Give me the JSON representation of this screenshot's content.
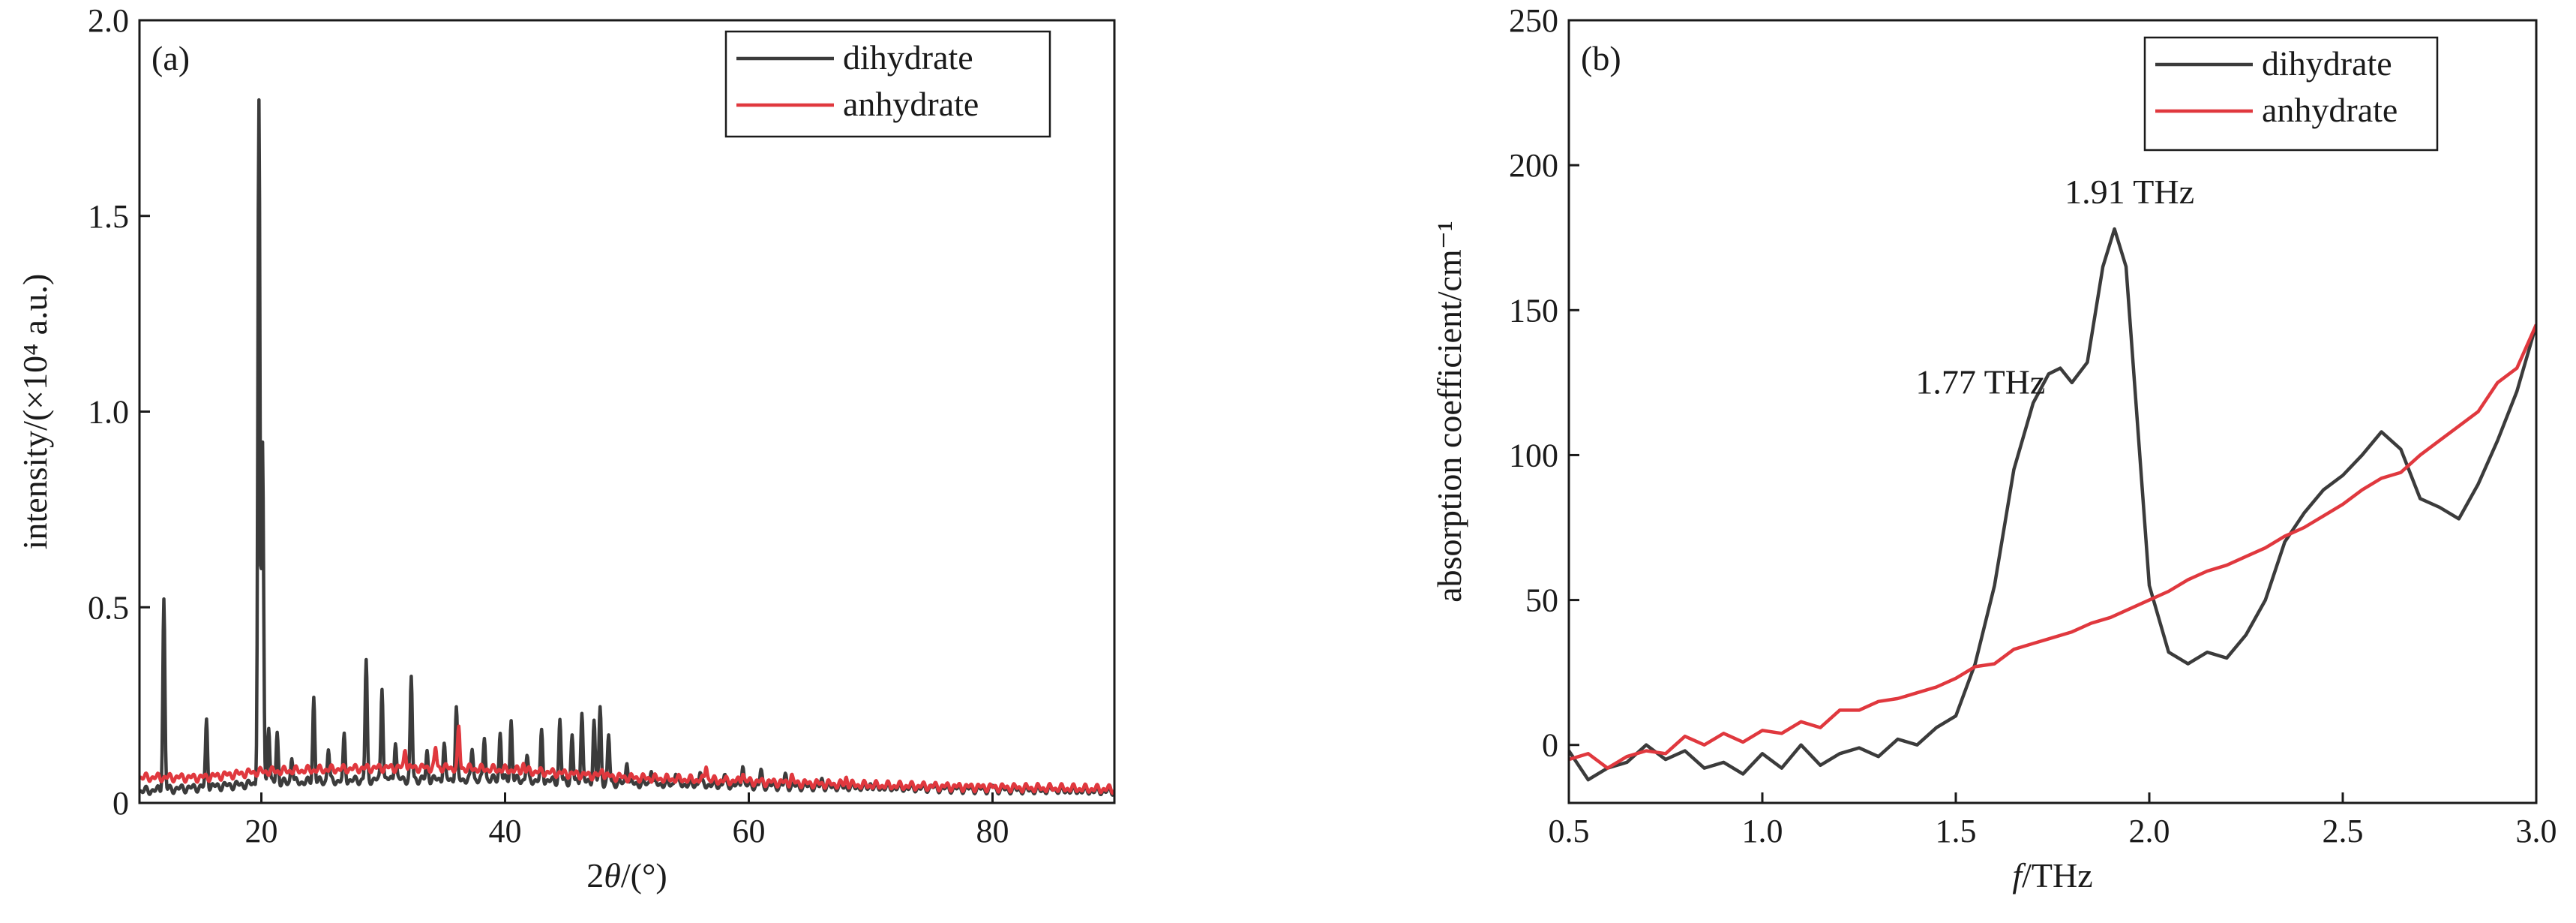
{
  "colors": {
    "dihydrate": "#3b3b3b",
    "anhydrate": "#e0383e",
    "axis": "#1a1a1a"
  },
  "chart_data": [
    {
      "type": "line",
      "panel_label": "(a)",
      "xlabel_prefix": "2",
      "xlabel_theta": "θ",
      "xlabel_suffix": "/(°)",
      "ylabel": "intensity/(×10⁴ a.u.)",
      "xlim": [
        10,
        90
      ],
      "ylim": [
        0,
        2.0
      ],
      "xticks": [
        20,
        40,
        60,
        80
      ],
      "xtick_labels": [
        "20",
        "40",
        "60",
        "80"
      ],
      "yticks": [
        0,
        0.5,
        1.0,
        1.5,
        2.0
      ],
      "ytick_labels": [
        "0",
        "0.5",
        "1.0",
        "1.5",
        "2.0"
      ],
      "grid": false,
      "legend_position": "top-right",
      "series": [
        {
          "name": "dihydrate",
          "color_key": "dihydrate",
          "baseline": [
            [
              10,
              0.03
            ],
            [
              20,
              0.05
            ],
            [
              30,
              0.06
            ],
            [
              40,
              0.06
            ],
            [
              50,
              0.05
            ],
            [
              60,
              0.045
            ],
            [
              70,
              0.04
            ],
            [
              80,
              0.035
            ],
            [
              90,
              0.03
            ]
          ],
          "peaks": [
            [
              12.0,
              0.52
            ],
            [
              15.5,
              0.21
            ],
            [
              19.8,
              1.79
            ],
            [
              20.1,
              0.92
            ],
            [
              20.6,
              0.2
            ],
            [
              21.3,
              0.18
            ],
            [
              22.5,
              0.12
            ],
            [
              24.3,
              0.27
            ],
            [
              25.5,
              0.14
            ],
            [
              26.8,
              0.17
            ],
            [
              28.6,
              0.36
            ],
            [
              29.9,
              0.3
            ],
            [
              31.0,
              0.16
            ],
            [
              32.3,
              0.32
            ],
            [
              33.6,
              0.13
            ],
            [
              35.0,
              0.15
            ],
            [
              36.0,
              0.24
            ],
            [
              37.3,
              0.14
            ],
            [
              38.3,
              0.17
            ],
            [
              39.6,
              0.18
            ],
            [
              40.5,
              0.21
            ],
            [
              41.8,
              0.12
            ],
            [
              43.0,
              0.18
            ],
            [
              44.5,
              0.21
            ],
            [
              45.5,
              0.17
            ],
            [
              46.3,
              0.23
            ],
            [
              47.3,
              0.21
            ],
            [
              47.8,
              0.24
            ],
            [
              48.5,
              0.17
            ],
            [
              50.0,
              0.11
            ],
            [
              52.0,
              0.09
            ],
            [
              54.0,
              0.08
            ],
            [
              56.0,
              0.08
            ],
            [
              58.0,
              0.07
            ],
            [
              59.5,
              0.1
            ],
            [
              61.0,
              0.08
            ],
            [
              63.0,
              0.07
            ],
            [
              66.0,
              0.06
            ],
            [
              70.0,
              0.05
            ],
            [
              75.0,
              0.045
            ],
            [
              80.0,
              0.045
            ],
            [
              85.0,
              0.04
            ]
          ]
        },
        {
          "name": "anhydrate",
          "color_key": "anhydrate",
          "baseline": [
            [
              10,
              0.065
            ],
            [
              15,
              0.065
            ],
            [
              20,
              0.08
            ],
            [
              25,
              0.085
            ],
            [
              30,
              0.09
            ],
            [
              35,
              0.09
            ],
            [
              40,
              0.085
            ],
            [
              50,
              0.065
            ],
            [
              60,
              0.055
            ],
            [
              70,
              0.045
            ],
            [
              80,
              0.04
            ],
            [
              90,
              0.035
            ]
          ],
          "peaks": [
            [
              31.8,
              0.14
            ],
            [
              34.3,
              0.14
            ],
            [
              36.2,
              0.19
            ],
            [
              41.5,
              0.1
            ],
            [
              48.0,
              0.09
            ],
            [
              56.5,
              0.1
            ],
            [
              59.5,
              0.08
            ],
            [
              63.5,
              0.07
            ],
            [
              68.0,
              0.065
            ]
          ]
        }
      ]
    },
    {
      "type": "line",
      "panel_label": "(b)",
      "xlabel_italic": "f",
      "xlabel_suffix": "/THz",
      "ylabel": "absorption coefficient/cm⁻¹",
      "xlim": [
        0.5,
        3.0
      ],
      "ylim": [
        -20,
        250
      ],
      "xticks": [
        0.5,
        1.0,
        1.5,
        2.0,
        2.5,
        3.0
      ],
      "xtick_labels": [
        "0.5",
        "1.0",
        "1.5",
        "2.0",
        "2.5",
        "3.0"
      ],
      "yticks": [
        0,
        50,
        100,
        150,
        200,
        250
      ],
      "ytick_labels": [
        "0",
        "50",
        "100",
        "150",
        "200",
        "250"
      ],
      "grid": false,
      "legend_position": "top-right",
      "annotations": [
        {
          "text": "1.77 THz",
          "x": 1.77,
          "y": 130
        },
        {
          "text": "1.91 THz",
          "x": 1.91,
          "y": 178
        }
      ],
      "series": [
        {
          "name": "dihydrate",
          "color_key": "dihydrate",
          "x": [
            0.5,
            0.55,
            0.6,
            0.65,
            0.7,
            0.75,
            0.8,
            0.85,
            0.9,
            0.95,
            1.0,
            1.05,
            1.1,
            1.15,
            1.2,
            1.25,
            1.3,
            1.35,
            1.4,
            1.45,
            1.5,
            1.55,
            1.6,
            1.65,
            1.7,
            1.74,
            1.77,
            1.8,
            1.84,
            1.88,
            1.91,
            1.94,
            1.97,
            2.0,
            2.05,
            2.1,
            2.15,
            2.2,
            2.25,
            2.3,
            2.35,
            2.4,
            2.45,
            2.5,
            2.55,
            2.6,
            2.65,
            2.7,
            2.75,
            2.8,
            2.85,
            2.9,
            2.95,
            3.0
          ],
          "y": [
            -2,
            -12,
            -8,
            -6,
            0,
            -5,
            -2,
            -8,
            -6,
            -10,
            -3,
            -8,
            0,
            -7,
            -3,
            -1,
            -4,
            2,
            0,
            6,
            10,
            28,
            55,
            95,
            118,
            128,
            130,
            125,
            132,
            165,
            178,
            165,
            110,
            55,
            32,
            28,
            32,
            30,
            38,
            50,
            70,
            80,
            88,
            93,
            100,
            108,
            102,
            85,
            82,
            78,
            90,
            105,
            122,
            145
          ]
        },
        {
          "name": "anhydrate",
          "color_key": "anhydrate",
          "x": [
            0.5,
            0.55,
            0.6,
            0.65,
            0.7,
            0.75,
            0.8,
            0.85,
            0.9,
            0.95,
            1.0,
            1.05,
            1.1,
            1.15,
            1.2,
            1.25,
            1.3,
            1.35,
            1.4,
            1.45,
            1.5,
            1.55,
            1.6,
            1.65,
            1.7,
            1.75,
            1.8,
            1.85,
            1.9,
            1.95,
            2.0,
            2.05,
            2.1,
            2.15,
            2.2,
            2.25,
            2.3,
            2.35,
            2.4,
            2.45,
            2.5,
            2.55,
            2.6,
            2.65,
            2.7,
            2.75,
            2.8,
            2.85,
            2.9,
            2.95,
            3.0
          ],
          "y": [
            -5,
            -3,
            -8,
            -4,
            -2,
            -3,
            3,
            0,
            4,
            1,
            5,
            4,
            8,
            6,
            12,
            12,
            15,
            16,
            18,
            20,
            23,
            27,
            28,
            33,
            35,
            37,
            39,
            42,
            44,
            47,
            50,
            53,
            57,
            60,
            62,
            65,
            68,
            72,
            75,
            79,
            83,
            88,
            92,
            94,
            100,
            105,
            110,
            115,
            125,
            130,
            145
          ]
        }
      ]
    }
  ]
}
